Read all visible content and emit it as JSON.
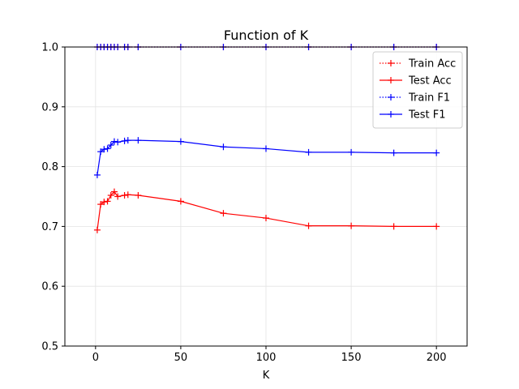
{
  "chart_data": {
    "type": "line",
    "title": "Function of K",
    "xlabel": "K",
    "ylabel": "",
    "xlim": [
      -18,
      218
    ],
    "ylim": [
      0.5,
      1.0
    ],
    "x_ticks": [
      0,
      50,
      100,
      150,
      200
    ],
    "y_ticks": [
      0.5,
      0.6,
      0.7,
      0.8,
      0.9,
      1.0
    ],
    "x_tick_labels": [
      "0",
      "50",
      "100",
      "150",
      "200"
    ],
    "y_tick_labels": [
      "0.5",
      "0.6",
      "0.7",
      "0.8",
      "0.9",
      "1.0"
    ],
    "grid": true,
    "legend_position": "top-right",
    "x": [
      1,
      3,
      5,
      7,
      9,
      11,
      13,
      17,
      19,
      25,
      50,
      75,
      100,
      125,
      150,
      175,
      200
    ],
    "series": [
      {
        "name": "Train Acc",
        "color": "#ff0000",
        "linestyle": "dotted",
        "values": [
          1.0,
          1.0,
          1.0,
          1.0,
          1.0,
          1.0,
          1.0,
          1.0,
          1.0,
          1.0,
          1.0,
          1.0,
          1.0,
          1.0,
          1.0,
          1.0,
          1.0
        ]
      },
      {
        "name": "Test Acc",
        "color": "#ff0000",
        "linestyle": "solid",
        "values": [
          0.694,
          0.737,
          0.741,
          0.742,
          0.752,
          0.758,
          0.75,
          0.752,
          0.753,
          0.752,
          0.742,
          0.722,
          0.714,
          0.701,
          0.701,
          0.7,
          0.7
        ]
      },
      {
        "name": "Train F1",
        "color": "#0000ff",
        "linestyle": "dotted",
        "values": [
          1.0,
          1.0,
          1.0,
          1.0,
          1.0,
          1.0,
          1.0,
          1.0,
          1.0,
          1.0,
          1.0,
          1.0,
          1.0,
          1.0,
          1.0,
          1.0,
          1.0
        ]
      },
      {
        "name": "Test F1",
        "color": "#0000ff",
        "linestyle": "solid",
        "values": [
          0.786,
          0.825,
          0.829,
          0.83,
          0.836,
          0.842,
          0.841,
          0.843,
          0.844,
          0.844,
          0.842,
          0.833,
          0.83,
          0.824,
          0.824,
          0.823,
          0.823
        ]
      }
    ]
  }
}
